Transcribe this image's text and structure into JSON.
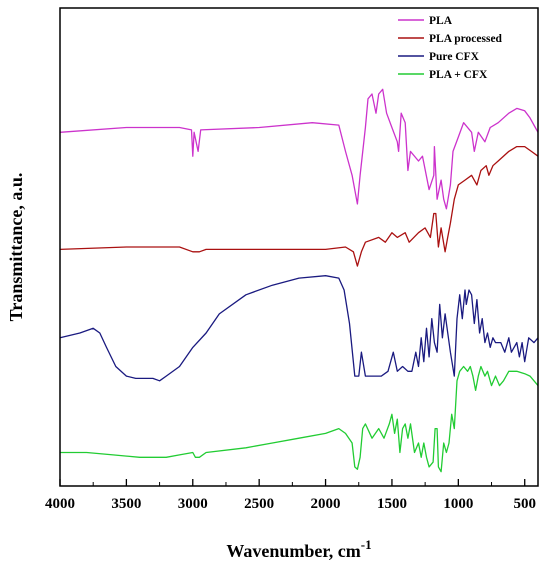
{
  "chart_data": {
    "type": "line",
    "title": "",
    "xlabel": "Wavenumber, cm",
    "xlabel_superscript": "-1",
    "ylabel": "Transmittance, a.u.",
    "xlim": [
      4000,
      400
    ],
    "x_reversed": true,
    "ylim": [
      0,
      100
    ],
    "y_ticks_shown": false,
    "grid": false,
    "legend_position": "top-right",
    "x_ticks": [
      {
        "value": 4000,
        "label": "4000"
      },
      {
        "value": 3500,
        "label": "3500"
      },
      {
        "value": 3000,
        "label": "3000"
      },
      {
        "value": 2500,
        "label": "2500"
      },
      {
        "value": 2000,
        "label": "2000"
      },
      {
        "value": 1500,
        "label": "1500"
      },
      {
        "value": 1000,
        "label": "1000"
      },
      {
        "value": 500,
        "label": "500"
      }
    ],
    "series": [
      {
        "name": "PLA",
        "color": "#cc33cc",
        "points": [
          [
            4000,
            74
          ],
          [
            3500,
            75
          ],
          [
            3100,
            75
          ],
          [
            3010,
            74.5
          ],
          [
            3000,
            69
          ],
          [
            2990,
            74
          ],
          [
            2960,
            70
          ],
          [
            2940,
            74.5
          ],
          [
            2500,
            75
          ],
          [
            2100,
            76
          ],
          [
            1900,
            75.5
          ],
          [
            1850,
            70
          ],
          [
            1800,
            65
          ],
          [
            1760,
            59
          ],
          [
            1740,
            65
          ],
          [
            1700,
            75
          ],
          [
            1680,
            81
          ],
          [
            1650,
            82
          ],
          [
            1620,
            78
          ],
          [
            1600,
            82
          ],
          [
            1570,
            83
          ],
          [
            1540,
            78
          ],
          [
            1500,
            75
          ],
          [
            1460,
            72
          ],
          [
            1450,
            70
          ],
          [
            1430,
            78
          ],
          [
            1400,
            76
          ],
          [
            1380,
            66
          ],
          [
            1360,
            70
          ],
          [
            1300,
            68
          ],
          [
            1270,
            69
          ],
          [
            1220,
            62
          ],
          [
            1185,
            65
          ],
          [
            1180,
            71
          ],
          [
            1160,
            60
          ],
          [
            1130,
            64
          ],
          [
            1110,
            60
          ],
          [
            1090,
            58
          ],
          [
            1060,
            63
          ],
          [
            1040,
            70
          ],
          [
            1000,
            73
          ],
          [
            960,
            76
          ],
          [
            900,
            74
          ],
          [
            880,
            70
          ],
          [
            850,
            74
          ],
          [
            800,
            72
          ],
          [
            760,
            75
          ],
          [
            700,
            76
          ],
          [
            620,
            78
          ],
          [
            560,
            79
          ],
          [
            500,
            78.5
          ],
          [
            460,
            77
          ],
          [
            420,
            75
          ],
          [
            400,
            74
          ]
        ]
      },
      {
        "name": "PLA processed",
        "color": "#aa1111",
        "points": [
          [
            4000,
            49.5
          ],
          [
            3500,
            50
          ],
          [
            3100,
            50
          ],
          [
            3000,
            49
          ],
          [
            2950,
            49
          ],
          [
            2900,
            49.5
          ],
          [
            2500,
            49.5
          ],
          [
            2000,
            49.5
          ],
          [
            1850,
            50
          ],
          [
            1790,
            49
          ],
          [
            1760,
            46
          ],
          [
            1730,
            49
          ],
          [
            1700,
            51
          ],
          [
            1600,
            52
          ],
          [
            1550,
            51
          ],
          [
            1500,
            53
          ],
          [
            1460,
            52
          ],
          [
            1400,
            53
          ],
          [
            1370,
            51
          ],
          [
            1300,
            53
          ],
          [
            1250,
            54
          ],
          [
            1210,
            52
          ],
          [
            1185,
            57
          ],
          [
            1170,
            57
          ],
          [
            1150,
            50
          ],
          [
            1130,
            54
          ],
          [
            1100,
            49
          ],
          [
            1080,
            52
          ],
          [
            1060,
            55
          ],
          [
            1030,
            60
          ],
          [
            1000,
            63
          ],
          [
            950,
            64
          ],
          [
            900,
            65
          ],
          [
            860,
            63
          ],
          [
            830,
            66
          ],
          [
            790,
            67
          ],
          [
            770,
            65
          ],
          [
            740,
            67
          ],
          [
            700,
            68
          ],
          [
            620,
            70
          ],
          [
            560,
            71
          ],
          [
            500,
            71
          ],
          [
            450,
            70
          ],
          [
            400,
            69
          ]
        ]
      },
      {
        "name": "Pure CFX",
        "color": "#1a1a80",
        "points": [
          [
            4000,
            31
          ],
          [
            3850,
            32
          ],
          [
            3750,
            33
          ],
          [
            3700,
            32
          ],
          [
            3650,
            29
          ],
          [
            3580,
            25
          ],
          [
            3500,
            23
          ],
          [
            3430,
            22.5
          ],
          [
            3300,
            22.5
          ],
          [
            3250,
            22
          ],
          [
            3200,
            23
          ],
          [
            3100,
            25
          ],
          [
            3000,
            29
          ],
          [
            2900,
            32
          ],
          [
            2800,
            36
          ],
          [
            2600,
            40
          ],
          [
            2400,
            42
          ],
          [
            2200,
            43.5
          ],
          [
            2000,
            44
          ],
          [
            1900,
            43.5
          ],
          [
            1860,
            41
          ],
          [
            1820,
            34
          ],
          [
            1780,
            23
          ],
          [
            1750,
            23
          ],
          [
            1730,
            28
          ],
          [
            1700,
            23
          ],
          [
            1650,
            23
          ],
          [
            1580,
            23
          ],
          [
            1530,
            24
          ],
          [
            1490,
            28
          ],
          [
            1460,
            24
          ],
          [
            1420,
            25
          ],
          [
            1380,
            24
          ],
          [
            1350,
            24
          ],
          [
            1320,
            28
          ],
          [
            1300,
            25
          ],
          [
            1280,
            31
          ],
          [
            1260,
            26
          ],
          [
            1240,
            33
          ],
          [
            1220,
            27
          ],
          [
            1200,
            35
          ],
          [
            1180,
            30
          ],
          [
            1160,
            28
          ],
          [
            1140,
            38
          ],
          [
            1120,
            31
          ],
          [
            1100,
            36
          ],
          [
            1060,
            28
          ],
          [
            1030,
            23
          ],
          [
            1010,
            35
          ],
          [
            990,
            40
          ],
          [
            970,
            35
          ],
          [
            950,
            41
          ],
          [
            940,
            38
          ],
          [
            920,
            41
          ],
          [
            900,
            40
          ],
          [
            880,
            34
          ],
          [
            860,
            39
          ],
          [
            840,
            32
          ],
          [
            820,
            35
          ],
          [
            800,
            30
          ],
          [
            780,
            32
          ],
          [
            760,
            29
          ],
          [
            740,
            31
          ],
          [
            720,
            30
          ],
          [
            680,
            30
          ],
          [
            650,
            28
          ],
          [
            620,
            31
          ],
          [
            600,
            28
          ],
          [
            560,
            30
          ],
          [
            540,
            27
          ],
          [
            520,
            30
          ],
          [
            500,
            26
          ],
          [
            470,
            31
          ],
          [
            430,
            30
          ],
          [
            400,
            31
          ]
        ]
      },
      {
        "name": "PLA + CFX",
        "color": "#22cc33",
        "points": [
          [
            4000,
            7
          ],
          [
            3800,
            7
          ],
          [
            3600,
            6.5
          ],
          [
            3400,
            6
          ],
          [
            3200,
            6
          ],
          [
            3100,
            6.5
          ],
          [
            3000,
            7
          ],
          [
            2980,
            6
          ],
          [
            2950,
            6
          ],
          [
            2900,
            7
          ],
          [
            2600,
            8
          ],
          [
            2400,
            9
          ],
          [
            2200,
            10
          ],
          [
            2000,
            11
          ],
          [
            1900,
            12
          ],
          [
            1850,
            11
          ],
          [
            1800,
            9
          ],
          [
            1780,
            4
          ],
          [
            1760,
            3.5
          ],
          [
            1740,
            6
          ],
          [
            1720,
            12
          ],
          [
            1700,
            13
          ],
          [
            1650,
            10
          ],
          [
            1600,
            12
          ],
          [
            1560,
            10
          ],
          [
            1520,
            13
          ],
          [
            1500,
            15
          ],
          [
            1480,
            11
          ],
          [
            1460,
            14
          ],
          [
            1440,
            7
          ],
          [
            1420,
            12
          ],
          [
            1400,
            13
          ],
          [
            1380,
            10
          ],
          [
            1360,
            13
          ],
          [
            1330,
            7
          ],
          [
            1300,
            9
          ],
          [
            1280,
            6
          ],
          [
            1260,
            9
          ],
          [
            1240,
            6
          ],
          [
            1220,
            4
          ],
          [
            1190,
            5
          ],
          [
            1175,
            12
          ],
          [
            1160,
            12
          ],
          [
            1150,
            4
          ],
          [
            1130,
            3
          ],
          [
            1110,
            9
          ],
          [
            1090,
            7
          ],
          [
            1070,
            9
          ],
          [
            1050,
            15
          ],
          [
            1030,
            12
          ],
          [
            1010,
            22
          ],
          [
            990,
            24
          ],
          [
            960,
            25
          ],
          [
            930,
            24
          ],
          [
            910,
            25
          ],
          [
            890,
            23
          ],
          [
            870,
            20
          ],
          [
            850,
            23
          ],
          [
            830,
            25
          ],
          [
            800,
            23
          ],
          [
            780,
            24
          ],
          [
            750,
            21
          ],
          [
            720,
            23
          ],
          [
            690,
            21
          ],
          [
            660,
            22
          ],
          [
            620,
            24
          ],
          [
            560,
            24
          ],
          [
            500,
            23.5
          ],
          [
            460,
            23
          ],
          [
            430,
            22
          ],
          [
            400,
            21
          ]
        ]
      }
    ]
  }
}
